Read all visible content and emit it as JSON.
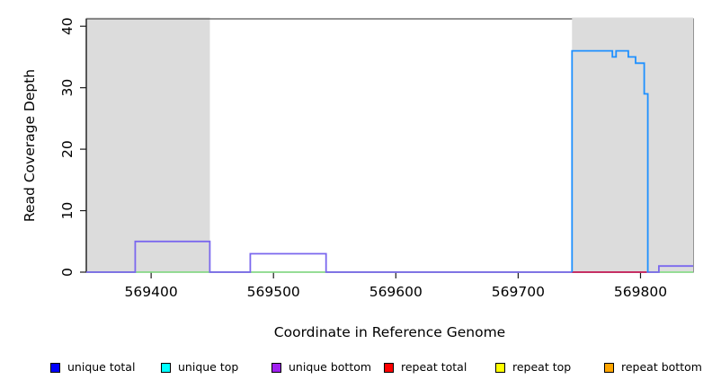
{
  "chart_data": {
    "type": "line",
    "title": "",
    "xlabel": "Coordinate in Reference Genome",
    "ylabel": "Read Coverage Depth",
    "xlim": [
      569347,
      569843
    ],
    "ylim": [
      0,
      41.2
    ],
    "x_ticks": [
      569400,
      569500,
      569600,
      569700,
      569800
    ],
    "y_ticks": [
      0,
      10,
      20,
      30,
      40
    ],
    "grid": false,
    "legend_position": "bottom",
    "shaded_regions": [
      {
        "name": "masked-region-left",
        "x0": 569347,
        "x1": 569448,
        "color": "#DCDCDC",
        "over_box": false
      },
      {
        "name": "masked-region-right",
        "x0": 569744,
        "x1": 569843,
        "color": "#DCDCDC",
        "over_box": true
      }
    ],
    "series": [
      {
        "name": "unique top",
        "color": "#90EE90",
        "width": 1.6,
        "points": [
          [
            569347,
            0
          ],
          [
            569843,
            0
          ]
        ]
      },
      {
        "name": "unique bottom",
        "color": "#7B68EE",
        "width": 1.8,
        "points": [
          [
            569347,
            0
          ],
          [
            569387,
            0
          ],
          [
            569387,
            5
          ],
          [
            569448,
            5
          ],
          [
            569448,
            0
          ],
          [
            569481,
            0
          ],
          [
            569481,
            3
          ],
          [
            569543,
            3
          ],
          [
            569543,
            0
          ],
          [
            569815,
            0
          ],
          [
            569815,
            1
          ],
          [
            569843,
            1
          ]
        ]
      },
      {
        "name": "repeat total",
        "color": "#DC143C",
        "width": 1.6,
        "points": [
          [
            569744,
            0
          ],
          [
            569805,
            0
          ]
        ]
      },
      {
        "name": "unique total",
        "color": "#1E90FF",
        "width": 1.8,
        "points": [
          [
            569744,
            0
          ],
          [
            569744,
            36
          ],
          [
            569777,
            36
          ],
          [
            569777,
            35
          ],
          [
            569780,
            35
          ],
          [
            569780,
            36
          ],
          [
            569790,
            36
          ],
          [
            569790,
            35
          ],
          [
            569796,
            35
          ],
          [
            569796,
            34
          ],
          [
            569803,
            34
          ],
          [
            569803,
            29
          ],
          [
            569806,
            29
          ],
          [
            569806,
            0
          ]
        ]
      }
    ]
  },
  "legend": {
    "items": [
      {
        "label": "unique total",
        "color": "#0000FF"
      },
      {
        "label": "unique top",
        "color": "#00FFFF"
      },
      {
        "label": "unique bottom",
        "color": "#A020F0"
      },
      {
        "label": "repeat total",
        "color": "#FF0000"
      },
      {
        "label": "repeat top",
        "color": "#FFFF00"
      },
      {
        "label": "repeat bottom",
        "color": "#FFA500"
      }
    ]
  }
}
